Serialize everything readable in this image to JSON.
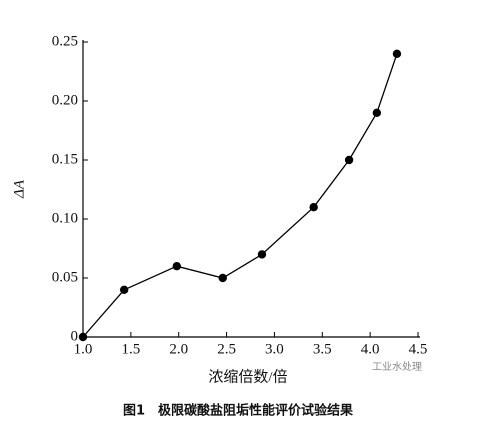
{
  "chart_data": {
    "type": "line",
    "x_label": "浓缩倍数/倍",
    "y_label": "ΔA",
    "caption": "图1　极限碳酸盐阻垢性能评价试验结果",
    "watermark": "工业水处理",
    "x": [
      1.0,
      1.43,
      1.98,
      2.46,
      2.87,
      3.41,
      3.78,
      4.07,
      4.28
    ],
    "series": [
      {
        "color": "#000000",
        "values": [
          0,
          0.04,
          0.06,
          0.05,
          0.07,
          0.11,
          0.15,
          0.19,
          0.24
        ]
      }
    ],
    "xlim": [
      1.0,
      4.5
    ],
    "xticks": [
      {
        "value": 1.0,
        "label": "1.0"
      },
      1.5,
      {
        "value": 2.0,
        "label": "2.0"
      },
      2.5,
      {
        "value": 3.0,
        "label": "3.0"
      },
      3.5,
      {
        "value": 4.0,
        "label": "4.0"
      },
      4.5
    ],
    "ylim": [
      0,
      0.25
    ],
    "yticks": [
      0,
      0.05,
      {
        "value": 0.1,
        "label": "0.10"
      },
      0.15,
      {
        "value": 0.2,
        "label": "0.20"
      },
      0.25
    ],
    "grid": false
  }
}
